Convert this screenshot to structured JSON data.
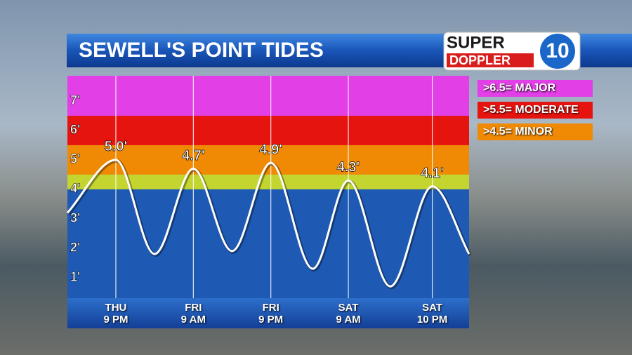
{
  "chart_data": {
    "type": "line",
    "title": "SEWELL'S POINT TIDES",
    "logo": {
      "top": "SUPER",
      "bottom": "DOPPLER",
      "number": "10"
    },
    "x": [
      -7.5,
      0,
      6,
      12,
      18,
      24,
      30.5,
      36,
      42.5,
      49,
      54.7
    ],
    "series": [
      {
        "name": "Tide",
        "color": "#ffffff",
        "values": [
          3.2,
          5.0,
          1.8,
          4.7,
          1.9,
          4.9,
          1.3,
          4.3,
          0.7,
          4.1,
          1.8
        ],
        "value_labels": [
          null,
          "5.0'",
          null,
          "4.7'",
          null,
          "4.9'",
          null,
          "4.3'",
          null,
          "4.1'",
          null
        ]
      }
    ],
    "xlim": [
      -7.5,
      54.7
    ],
    "xticks": [
      {
        "value": 0,
        "label": "THU\n9 PM"
      },
      {
        "value": 12,
        "label": "FRI\n9 AM"
      },
      {
        "value": 24,
        "label": "FRI\n9 PM"
      },
      {
        "value": 36,
        "label": "SAT\n9 AM"
      },
      {
        "value": 49,
        "label": "SAT\n10 PM"
      }
    ],
    "ylim": [
      0.3,
      7.86
    ],
    "yticks": [
      {
        "value": 1,
        "label": "1'"
      },
      {
        "value": 2,
        "label": "2'"
      },
      {
        "value": 3,
        "label": "3'"
      },
      {
        "value": 4,
        "label": "4'"
      },
      {
        "value": 5,
        "label": "5'"
      },
      {
        "value": 6,
        "label": "6'"
      },
      {
        "value": 7,
        "label": "7'"
      }
    ],
    "grid": true,
    "zones": [
      {
        "to": 4,
        "color": "#1e5ab4"
      },
      {
        "from": 4,
        "to": 4.5,
        "color": "#c3d52e"
      },
      {
        "from": 4.5,
        "to": 5.5,
        "color": "#f08a04",
        "label": ">4.5= MINOR"
      },
      {
        "from": 5.5,
        "to": 6.5,
        "color": "#e6140f",
        "label": ">5.5= MODERATE"
      },
      {
        "from": 6.5,
        "color": "#e23fe6",
        "label": ">6.5= MAJOR"
      }
    ]
  }
}
